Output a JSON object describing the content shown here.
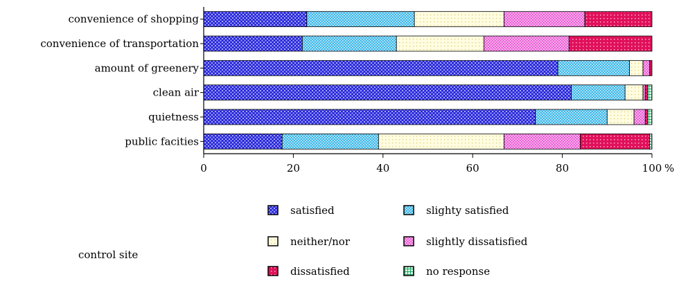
{
  "chart_data": {
    "type": "bar",
    "orientation": "horizontal",
    "stacked": true,
    "categories": [
      "convenience of shopping",
      "convenience of transportation",
      "amount of greenery",
      "clean air",
      "quietness",
      "public facities"
    ],
    "series": [
      {
        "name": "satisfied",
        "color": "#3030e0",
        "values": [
          23,
          22,
          79,
          82,
          74,
          17.5
        ]
      },
      {
        "name": "slighty satisfied",
        "color": "#38b8e8",
        "values": [
          24,
          21,
          16,
          12,
          16,
          21.5
        ]
      },
      {
        "name": "neither/nor",
        "color": "#fff6b0",
        "values": [
          20,
          19.5,
          3,
          4,
          6,
          28
        ]
      },
      {
        "name": "slightly dissatisfied",
        "color": "#f070d8",
        "values": [
          18,
          19,
          1.5,
          0.5,
          2.5,
          17
        ]
      },
      {
        "name": "dissatisfied",
        "color": "#e0105a",
        "values": [
          15,
          18.5,
          0.5,
          0.5,
          0.5,
          15.5
        ]
      },
      {
        "name": "no response",
        "color": "#20b070",
        "values": [
          0,
          0,
          0,
          1,
          1,
          0.5
        ]
      }
    ],
    "xlim": [
      0,
      100
    ],
    "x_ticks": [
      "0",
      "20",
      "40",
      "60",
      "80",
      "100"
    ],
    "x_unit": "%",
    "grid": false,
    "legend_position": "bottom"
  },
  "annotation": "control site"
}
